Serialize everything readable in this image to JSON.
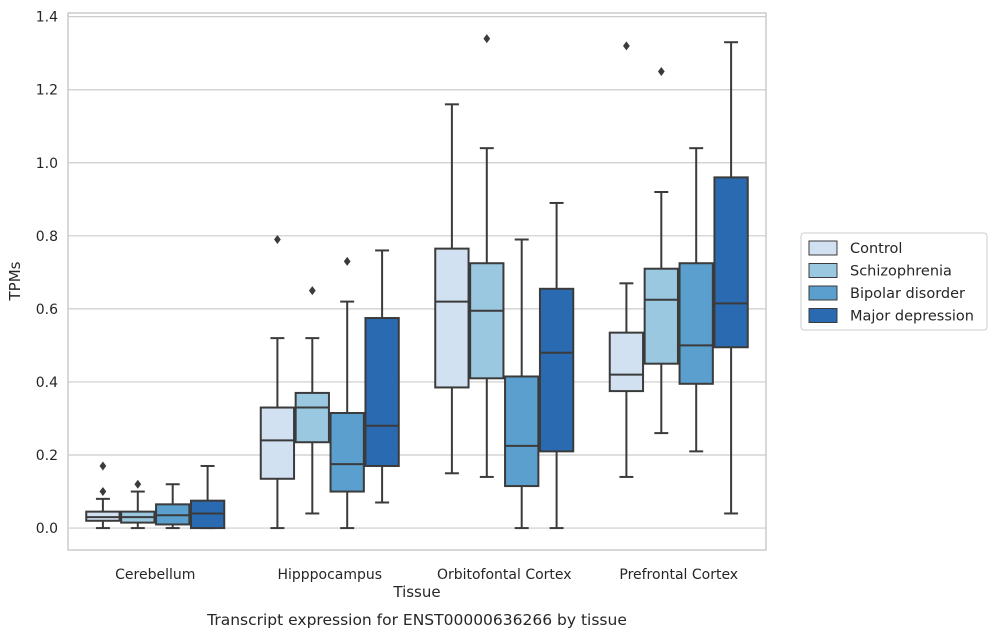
{
  "chart_data": {
    "type": "box",
    "caption": "Transcript expression for ENST00000636266 by tissue",
    "xlabel": "Tissue",
    "ylabel": "TPMs",
    "ylim": [
      -0.06,
      1.41
    ],
    "yticks": [
      0.0,
      0.2,
      0.4,
      0.6,
      0.8,
      1.0,
      1.2,
      1.4
    ],
    "ytick_labels": [
      "0.0",
      "0.2",
      "0.4",
      "0.6",
      "0.8",
      "1.0",
      "1.2",
      "1.4"
    ],
    "grid": true,
    "legend_position": "right-center",
    "categories": [
      "Cerebellum",
      "Hipppocampus",
      "Orbitofontal Cortex",
      "Prefrontal Cortex"
    ],
    "series": [
      {
        "name": "Control",
        "color": "#d1e1f1",
        "boxes": [
          {
            "whisker_low": 0.0,
            "q1": 0.02,
            "median": 0.03,
            "q3": 0.045,
            "whisker_high": 0.08,
            "outliers": [
              0.1,
              0.17
            ]
          },
          {
            "whisker_low": 0.0,
            "q1": 0.135,
            "median": 0.24,
            "q3": 0.33,
            "whisker_high": 0.52,
            "outliers": [
              0.79
            ]
          },
          {
            "whisker_low": 0.15,
            "q1": 0.385,
            "median": 0.62,
            "q3": 0.765,
            "whisker_high": 1.16,
            "outliers": []
          },
          {
            "whisker_low": 0.14,
            "q1": 0.375,
            "median": 0.42,
            "q3": 0.535,
            "whisker_high": 0.67,
            "outliers": [
              1.32
            ]
          }
        ]
      },
      {
        "name": "Schizophrenia",
        "color": "#9ac8e0",
        "boxes": [
          {
            "whisker_low": 0.0,
            "q1": 0.015,
            "median": 0.03,
            "q3": 0.045,
            "whisker_high": 0.1,
            "outliers": [
              0.12
            ]
          },
          {
            "whisker_low": 0.04,
            "q1": 0.235,
            "median": 0.33,
            "q3": 0.37,
            "whisker_high": 0.52,
            "outliers": [
              0.65
            ]
          },
          {
            "whisker_low": 0.14,
            "q1": 0.41,
            "median": 0.595,
            "q3": 0.725,
            "whisker_high": 1.04,
            "outliers": [
              1.34
            ]
          },
          {
            "whisker_low": 0.26,
            "q1": 0.45,
            "median": 0.625,
            "q3": 0.71,
            "whisker_high": 0.92,
            "outliers": [
              1.25
            ]
          }
        ]
      },
      {
        "name": "Bipolar disorder",
        "color": "#5a9fcd",
        "boxes": [
          {
            "whisker_low": 0.0,
            "q1": 0.01,
            "median": 0.035,
            "q3": 0.065,
            "whisker_high": 0.12,
            "outliers": []
          },
          {
            "whisker_low": 0.0,
            "q1": 0.1,
            "median": 0.175,
            "q3": 0.315,
            "whisker_high": 0.62,
            "outliers": [
              0.73
            ]
          },
          {
            "whisker_low": 0.0,
            "q1": 0.115,
            "median": 0.225,
            "q3": 0.415,
            "whisker_high": 0.79,
            "outliers": []
          },
          {
            "whisker_low": 0.21,
            "q1": 0.395,
            "median": 0.5,
            "q3": 0.725,
            "whisker_high": 1.04,
            "outliers": []
          }
        ]
      },
      {
        "name": "Major depression",
        "color": "#2a6ab0",
        "boxes": [
          {
            "whisker_low": 0.0,
            "q1": 0.0,
            "median": 0.04,
            "q3": 0.075,
            "whisker_high": 0.17,
            "outliers": []
          },
          {
            "whisker_low": 0.07,
            "q1": 0.17,
            "median": 0.28,
            "q3": 0.575,
            "whisker_high": 0.76,
            "outliers": []
          },
          {
            "whisker_low": 0.0,
            "q1": 0.21,
            "median": 0.48,
            "q3": 0.655,
            "whisker_high": 0.89,
            "outliers": []
          },
          {
            "whisker_low": 0.04,
            "q1": 0.495,
            "median": 0.615,
            "q3": 0.96,
            "whisker_high": 1.33,
            "outliers": []
          }
        ]
      }
    ]
  }
}
